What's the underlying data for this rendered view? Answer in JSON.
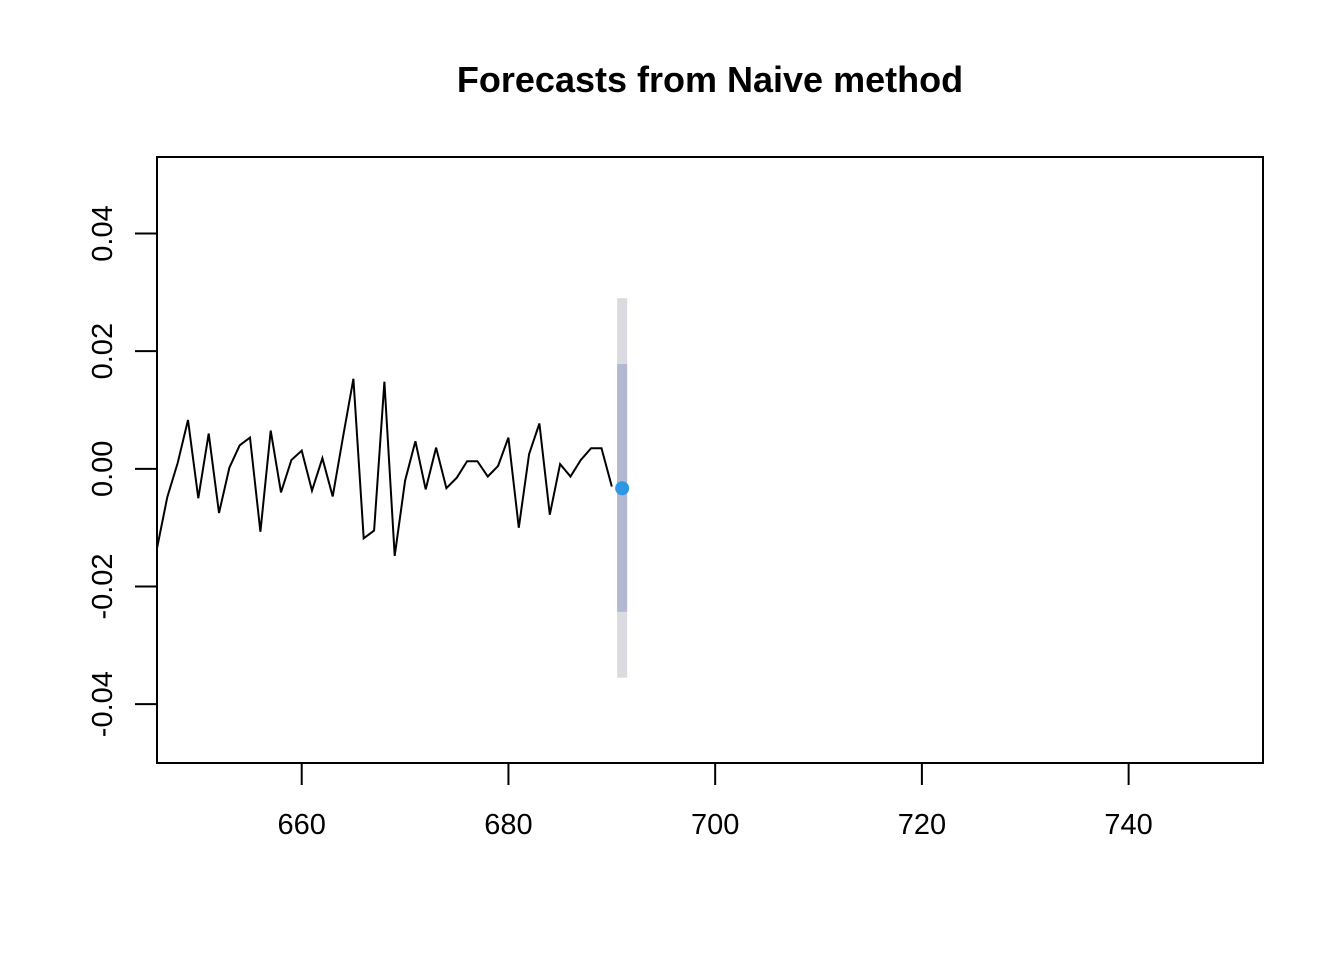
{
  "chart_data": {
    "type": "line",
    "title": "Forecasts from Naive method",
    "xlabel": "",
    "ylabel": "",
    "xlim": [
      646,
      753
    ],
    "ylim": [
      -0.05,
      0.053
    ],
    "x_ticks": [
      660,
      680,
      700,
      720,
      740
    ],
    "x_tick_labels": [
      "660",
      "680",
      "700",
      "720",
      "740"
    ],
    "y_ticks": [
      -0.04,
      -0.02,
      0.0,
      0.02,
      0.04
    ],
    "y_tick_labels": [
      "-0.04",
      "-0.02",
      "0.00",
      "0.02",
      "0.04"
    ],
    "grid": false,
    "series": [
      {
        "role": "history",
        "color": "#000000",
        "x": [
          646,
          647,
          648,
          649,
          650,
          651,
          652,
          653,
          654,
          655,
          656,
          657,
          658,
          659,
          660,
          661,
          662,
          663,
          664,
          665,
          666,
          667,
          668,
          669,
          670,
          671,
          672,
          673,
          674,
          675,
          676,
          677,
          678,
          679,
          680,
          681,
          682,
          683,
          684,
          685,
          686,
          687,
          688,
          689,
          690
        ],
        "y": [
          -0.0135,
          -0.0048,
          0.001,
          0.0083,
          -0.005,
          0.006,
          -0.0075,
          0.0002,
          0.004,
          0.0053,
          -0.0107,
          0.0065,
          -0.004,
          0.0015,
          0.0031,
          -0.0037,
          0.0018,
          -0.0047,
          0.0055,
          0.0153,
          -0.0118,
          -0.0105,
          0.0148,
          -0.0148,
          -0.002,
          0.0047,
          -0.0035,
          0.0036,
          -0.0033,
          -0.0015,
          0.0013,
          0.0013,
          -0.0013,
          0.0005,
          0.0053,
          -0.01,
          0.0025,
          0.0077,
          -0.0078,
          0.0008,
          -0.0013,
          0.0015,
          0.0035,
          0.0035,
          -0.003
        ]
      },
      {
        "role": "point-forecast",
        "color": "#2e96e6",
        "x": [
          691
        ],
        "y": [
          -0.0033
        ]
      }
    ],
    "intervals": [
      {
        "level": "95%",
        "x": 691,
        "lower": -0.0355,
        "upper": 0.029,
        "color": "#dadae0"
      },
      {
        "level": "80%",
        "x": 691,
        "lower": -0.0243,
        "upper": 0.0178,
        "color": "#b2b8cf"
      }
    ]
  }
}
